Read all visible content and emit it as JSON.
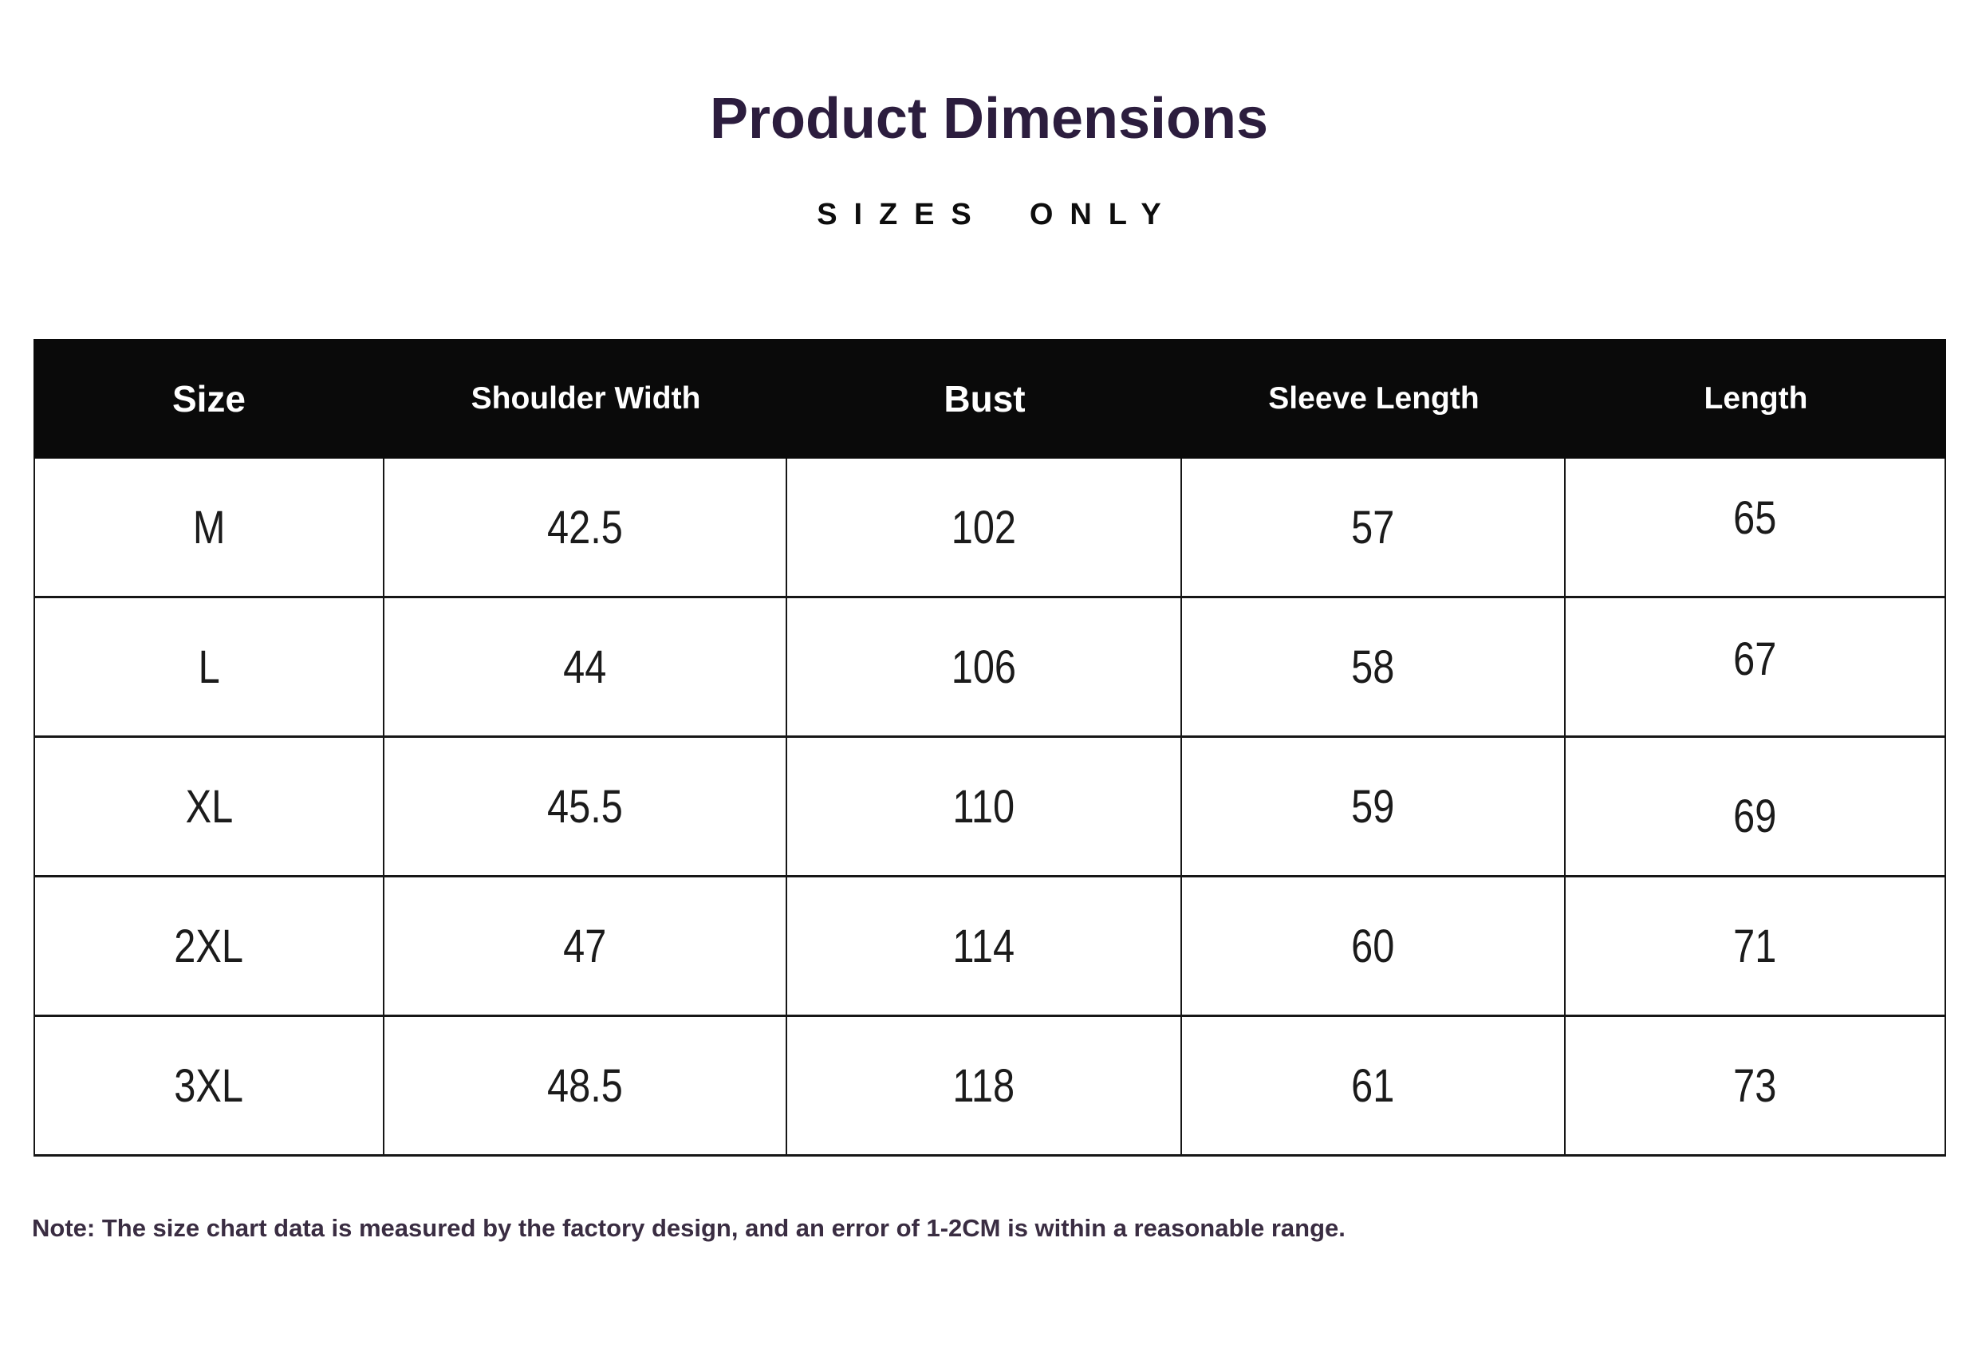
{
  "title": "Product Dimensions",
  "subtitle": "SIZES ONLY",
  "note": "Note: The size chart data is measured by the factory design, and an error of 1-2CM is within a reasonable range.",
  "colors": {
    "title_text": "#2c1d3e",
    "subtitle_text": "#0d0d0d",
    "header_bg": "#0a0a0a",
    "header_text": "#ffffff",
    "body_text": "#1b1b1b",
    "border": "#161616",
    "note_text": "#3a2d42",
    "background": "#ffffff"
  },
  "chart_data": {
    "type": "table",
    "title": "Product Dimensions",
    "subtitle": "SIZES ONLY",
    "columns": [
      "Size",
      "Shoulder Width",
      "Bust",
      "Sleeve Length",
      "Length"
    ],
    "rows": [
      [
        "M",
        "42.5",
        "102",
        "57",
        "65"
      ],
      [
        "L",
        "44",
        "106",
        "58",
        "67"
      ],
      [
        "XL",
        "45.5",
        "110",
        "59",
        "69"
      ],
      [
        "2XL",
        "47",
        "114",
        "60",
        "71"
      ],
      [
        "3XL",
        "48.5",
        "118",
        "61",
        "73"
      ]
    ],
    "note": "Note: The size chart data is measured by the factory design, and an error of 1-2CM is within a reasonable range.",
    "layout": {
      "header_style": "solid black bar, white bold labels",
      "grid": "thin black cell borders, no header column dividers",
      "legend_position": "none"
    }
  }
}
